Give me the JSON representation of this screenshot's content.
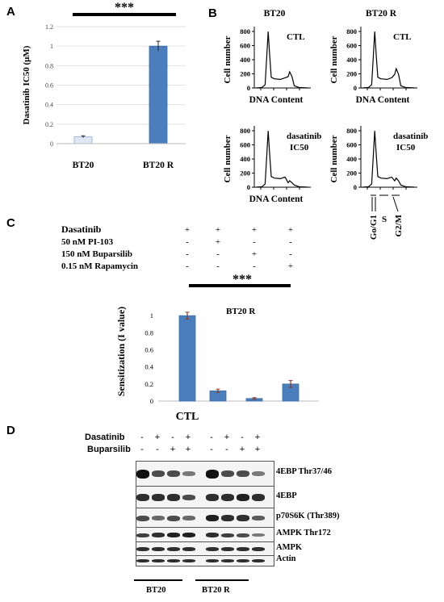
{
  "panels": {
    "A": {
      "letter": "A"
    },
    "B": {
      "letter": "B"
    },
    "C": {
      "letter": "C"
    },
    "D": {
      "letter": "D"
    }
  },
  "chart_data": [
    {
      "type": "bar",
      "panel": "A",
      "categories": [
        "BT20",
        "BT20 R"
      ],
      "values": [
        0.07,
        1.0
      ],
      "errors": [
        0.01,
        0.05
      ],
      "bar_colors": [
        "#dde8f4",
        "#4a7ebd"
      ],
      "ylabel": "Dasatinib IC50 (μM)",
      "ylim": [
        0,
        1.2
      ],
      "yticks": [
        "0",
        "0.2",
        "0.4",
        "0.6",
        "0.8",
        "1",
        "1.2"
      ],
      "significance": "***",
      "grid": true
    },
    {
      "type": "bar",
      "panel": "C",
      "categories": [
        "CTL",
        "",
        "",
        ""
      ],
      "values": [
        1.0,
        0.12,
        0.03,
        0.2
      ],
      "errors": [
        0.04,
        0.02,
        0.01,
        0.04
      ],
      "bar_colors": [
        "#4a7ebd",
        "#4a7ebd",
        "#4a7ebd",
        "#4a7ebd"
      ],
      "ylabel": "Sensitization (I value)",
      "ylim": [
        0,
        1.2
      ],
      "yticks": [
        "0",
        "0.2",
        "0.4",
        "0.6",
        "0.8",
        "1"
      ],
      "annotation": "BT20 R",
      "significance": "***",
      "treatments": [
        {
          "label": "Dasatinib",
          "signs": [
            "+",
            "+",
            "+",
            "+"
          ]
        },
        {
          "label": "50 nM  PI-103",
          "signs": [
            "-",
            "+",
            "-",
            "-"
          ]
        },
        {
          "label": "150 nM  Buparsilib",
          "signs": [
            "-",
            "-",
            "+",
            "-"
          ]
        },
        {
          "label": "0.15 nM  Rapamycin",
          "signs": [
            "-",
            "-",
            "-",
            "+"
          ]
        }
      ]
    }
  ],
  "panelB": {
    "plots": [
      {
        "column_title": "BT20",
        "condition_line1": "CTL",
        "condition_line2": "",
        "xlabel": "DNA Content"
      },
      {
        "column_title": "BT20 R",
        "condition_line1": "CTL",
        "condition_line2": "",
        "xlabel": "DNA Content"
      },
      {
        "column_title": "",
        "condition_line1": "dasatinib",
        "condition_line2": "IC50",
        "xlabel": "DNA Content"
      },
      {
        "column_title": "",
        "condition_line1": "dasatinib",
        "condition_line2": "IC50",
        "xlabel": ""
      }
    ],
    "ylabel": "Cell number",
    "yticks": [
      "0",
      "200",
      "400",
      "600",
      "800"
    ],
    "phases": [
      "Go/G1",
      "S",
      "G2/M"
    ]
  },
  "panelD": {
    "treatments": [
      {
        "label": "Dasatinib",
        "signs": [
          "-",
          "+",
          "-",
          "+",
          "-",
          "+",
          "-",
          "+"
        ]
      },
      {
        "label": "Buparsilib",
        "signs": [
          "-",
          "-",
          "+",
          "+",
          "-",
          "-",
          "+",
          "+"
        ]
      }
    ],
    "blots": [
      "4EBP Thr37/46",
      "4EBP",
      "p70S6K (Thr389)",
      "AMPK Thr172",
      "AMPK",
      "Actin"
    ],
    "band_intensity": [
      [
        1.0,
        0.6,
        0.6,
        0.3,
        1.0,
        0.6,
        0.6,
        0.3
      ],
      [
        0.8,
        0.8,
        0.8,
        0.6,
        0.8,
        0.8,
        0.9,
        0.8
      ],
      [
        0.6,
        0.4,
        0.6,
        0.4,
        0.9,
        0.8,
        0.8,
        0.5
      ],
      [
        0.7,
        0.8,
        0.9,
        0.9,
        0.8,
        0.7,
        0.6,
        0.3
      ],
      [
        0.8,
        0.8,
        0.8,
        0.8,
        0.8,
        0.8,
        0.8,
        0.8
      ],
      [
        0.8,
        0.8,
        0.8,
        0.8,
        0.8,
        0.8,
        0.8,
        0.8
      ]
    ],
    "groups": [
      "BT20",
      "BT20 R"
    ]
  }
}
